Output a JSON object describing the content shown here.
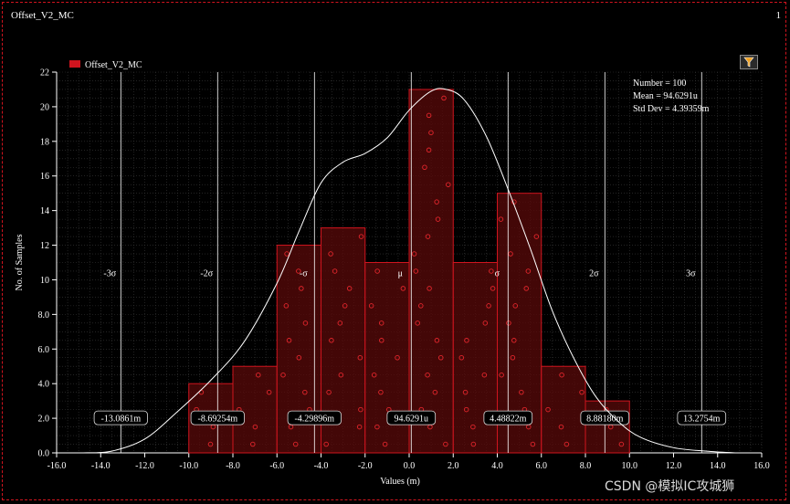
{
  "window": {
    "title": "Offset_V2_MC",
    "number": "1"
  },
  "watermark": "CSDN @模拟IC攻城狮",
  "icons": {
    "filter": "filter-funnel-icon"
  },
  "colors": {
    "bar_fill": "#5a0a0a",
    "bar_stroke": "#d0141e",
    "point": "#e3262c",
    "curve": "#ffffff",
    "grid": "#3a3a3a",
    "sigma_line": "#ffffff",
    "legend": "#d0141e"
  },
  "chart_data": {
    "type": "bar",
    "xlabel": "Values (m)",
    "ylabel": "No. of Samples",
    "xlim": [
      -16,
      16
    ],
    "ylim": [
      0,
      22
    ],
    "xticks": [
      "-16.0",
      "-14.0",
      "-12.0",
      "-10.0",
      "-8.0",
      "-6.0",
      "-4.0",
      "-2.0",
      "0.0",
      "2.0",
      "4.0",
      "6.0",
      "8.0",
      "10.0",
      "12.0",
      "14.0",
      "16.0"
    ],
    "yticks": [
      "0.0",
      "2.0",
      "4.0",
      "6.0",
      "8.0",
      "10",
      "12",
      "14",
      "16",
      "18",
      "20",
      "22"
    ],
    "grid": true,
    "legend": {
      "position": "top-left",
      "entries": [
        "Offset_V2_MC"
      ]
    },
    "bins": [
      {
        "start": -10.0,
        "end": -8.0,
        "count": 4
      },
      {
        "start": -8.0,
        "end": -6.0,
        "count": 5
      },
      {
        "start": -6.0,
        "end": -4.0,
        "count": 12
      },
      {
        "start": -4.0,
        "end": -2.0,
        "count": 13
      },
      {
        "start": -2.0,
        "end": 0.0,
        "count": 11
      },
      {
        "start": 0.0,
        "end": 2.0,
        "count": 21
      },
      {
        "start": 2.0,
        "end": 4.0,
        "count": 11
      },
      {
        "start": 4.0,
        "end": 6.0,
        "count": 15
      },
      {
        "start": 6.0,
        "end": 8.0,
        "count": 5
      },
      {
        "start": 8.0,
        "end": 10.0,
        "count": 3
      }
    ],
    "stats": {
      "number_label": "Number",
      "number": "100",
      "mean_label": "Mean",
      "mean": "94.6291u",
      "std_label": "Std Dev",
      "std": "4.39359m"
    },
    "sigma_lines": [
      {
        "symbol": "-3σ",
        "value": -13.0861,
        "label": "-13.0861m"
      },
      {
        "symbol": "-2σ",
        "value": -8.69254,
        "label": "-8.69254m"
      },
      {
        "symbol": "-σ",
        "value": -4.29896,
        "label": "-4.29896m"
      },
      {
        "symbol": "μ",
        "value": 0.0946291,
        "label": "94.6291u"
      },
      {
        "symbol": "σ",
        "value": 4.48822,
        "label": "4.48822m"
      },
      {
        "symbol": "2σ",
        "value": 8.8818,
        "label": "8.88180m"
      },
      {
        "symbol": "3σ",
        "value": 13.2754,
        "label": "13.2754m"
      }
    ],
    "density_curve": [
      [
        -14.8,
        0.0
      ],
      [
        -13.5,
        0.1
      ],
      [
        -12.0,
        0.8
      ],
      [
        -10.5,
        2.4
      ],
      [
        -9.0,
        4.2
      ],
      [
        -7.5,
        6.4
      ],
      [
        -6.0,
        9.8
      ],
      [
        -5.0,
        12.8
      ],
      [
        -4.0,
        15.6
      ],
      [
        -3.0,
        16.8
      ],
      [
        -2.0,
        17.3
      ],
      [
        -1.0,
        18.2
      ],
      [
        0.0,
        19.8
      ],
      [
        1.0,
        20.9
      ],
      [
        1.7,
        21.0
      ],
      [
        2.5,
        20.4
      ],
      [
        3.5,
        18.3
      ],
      [
        4.5,
        15.2
      ],
      [
        5.5,
        11.8
      ],
      [
        6.5,
        8.2
      ],
      [
        7.5,
        5.4
      ],
      [
        8.5,
        3.2
      ],
      [
        9.5,
        1.8
      ],
      [
        10.5,
        0.9
      ],
      [
        12.0,
        0.3
      ],
      [
        13.5,
        0.1
      ],
      [
        14.8,
        0.0
      ]
    ]
  }
}
